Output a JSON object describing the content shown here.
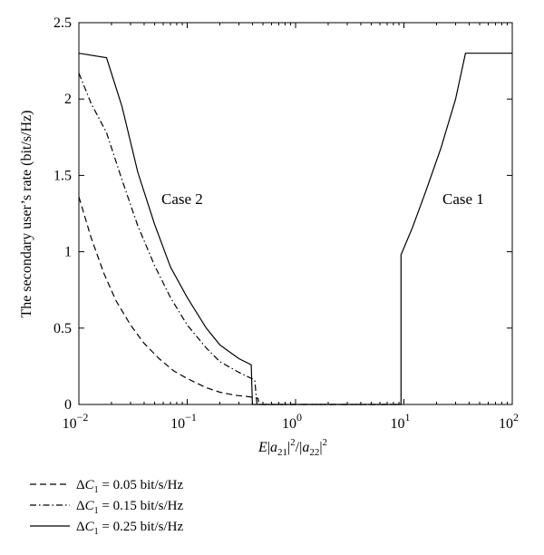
{
  "chart_data": {
    "type": "line",
    "title": "",
    "xlabel": "E|a21|²/|a22|²",
    "ylabel": "The secondary user’s rate (bit/s/Hz)",
    "x_scale": "log",
    "xlim": [
      0.01,
      100
    ],
    "ylim": [
      0,
      2.5
    ],
    "x_ticks": [
      0.01,
      0.1,
      1,
      10,
      100
    ],
    "x_tick_labels": [
      {
        "base": "10",
        "exp": "−2"
      },
      {
        "base": "10",
        "exp": "−1"
      },
      {
        "base": "10",
        "exp": "0"
      },
      {
        "base": "10",
        "exp": "1"
      },
      {
        "base": "10",
        "exp": "2"
      }
    ],
    "y_ticks": [
      0,
      0.5,
      1,
      1.5,
      2,
      2.5
    ],
    "y_tick_labels": [
      "0",
      "0.5",
      "1",
      "1.5",
      "2",
      "2.5"
    ],
    "grid": false,
    "legend_position": "below",
    "annotations": [
      {
        "text": "Case 2",
        "x": 0.05,
        "y": 1.57
      },
      {
        "text": "Case 1",
        "x": 20,
        "y": 1.57
      }
    ],
    "series": [
      {
        "name": "ΔC1 = 0.05 bit/s/Hz",
        "style": "dashed",
        "points": [
          [
            0.01,
            1.36
          ],
          [
            0.013,
            1.09
          ],
          [
            0.017,
            0.86
          ],
          [
            0.022,
            0.68
          ],
          [
            0.03,
            0.52
          ],
          [
            0.04,
            0.4
          ],
          [
            0.055,
            0.3
          ],
          [
            0.075,
            0.22
          ],
          [
            0.1,
            0.17
          ],
          [
            0.15,
            0.11
          ],
          [
            0.2,
            0.08
          ],
          [
            0.28,
            0.06
          ],
          [
            0.38,
            0.05
          ],
          [
            0.45,
            0.04
          ],
          [
            0.46,
            0
          ],
          [
            1,
            0
          ],
          [
            9.3,
            0
          ]
        ]
      },
      {
        "name": "ΔC1 = 0.15 bit/s/Hz",
        "style": "dashdot",
        "points": [
          [
            0.01,
            2.17
          ],
          [
            0.013,
            1.97
          ],
          [
            0.018,
            1.78
          ],
          [
            0.025,
            1.47
          ],
          [
            0.035,
            1.17
          ],
          [
            0.05,
            0.91
          ],
          [
            0.07,
            0.7
          ],
          [
            0.1,
            0.52
          ],
          [
            0.15,
            0.37
          ],
          [
            0.2,
            0.28
          ],
          [
            0.3,
            0.21
          ],
          [
            0.42,
            0.16
          ],
          [
            0.44,
            0
          ],
          [
            1,
            0
          ],
          [
            9.3,
            0
          ]
        ]
      },
      {
        "name": "ΔC1 = 0.25 bit/s/Hz",
        "style": "solid",
        "points": [
          [
            0.01,
            2.3
          ],
          [
            0.018,
            2.27
          ],
          [
            0.025,
            1.95
          ],
          [
            0.035,
            1.52
          ],
          [
            0.05,
            1.18
          ],
          [
            0.07,
            0.9
          ],
          [
            0.1,
            0.7
          ],
          [
            0.15,
            0.5
          ],
          [
            0.2,
            0.39
          ],
          [
            0.3,
            0.3
          ],
          [
            0.39,
            0.26
          ],
          [
            0.4,
            0
          ],
          [
            1,
            0
          ],
          [
            9.4,
            0
          ],
          [
            9.4,
            0.98
          ],
          [
            12,
            1.16
          ],
          [
            16,
            1.4
          ],
          [
            22,
            1.68
          ],
          [
            30,
            2.0
          ],
          [
            37,
            2.3
          ],
          [
            100,
            2.3
          ]
        ]
      }
    ]
  }
}
